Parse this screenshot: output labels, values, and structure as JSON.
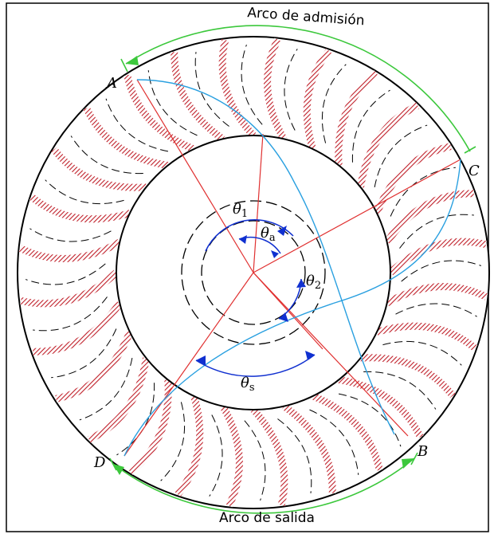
{
  "labels": {
    "arc_admission": "Arco de admisión",
    "arc_exit": "Arco de salida",
    "points": {
      "A": "A",
      "B": "B",
      "C": "C",
      "D": "D"
    },
    "angles": {
      "theta_1": {
        "symbol": "θ",
        "subscript": "1"
      },
      "theta_a": {
        "symbol": "θ",
        "subscript": "a"
      },
      "theta_2": {
        "symbol": "θ",
        "subscript": "2"
      },
      "theta_s": {
        "symbol": "θ",
        "subscript": "s"
      }
    }
  }
}
